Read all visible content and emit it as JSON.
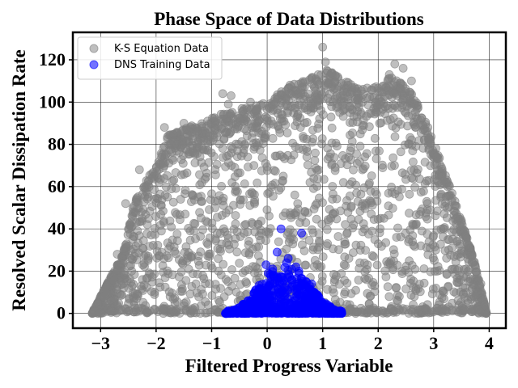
{
  "chart_data": {
    "type": "scatter",
    "title": "Phase Space of Data Distributions",
    "xlabel": "Filtered Progress Variable",
    "ylabel": "Resolved Scalar Dissipation Rate",
    "xlim": [
      -3.5,
      4.3
    ],
    "ylim": [
      -7,
      133
    ],
    "xticks": [
      -3,
      -2,
      -1,
      0,
      1,
      2,
      3,
      4
    ],
    "xtick_labels": [
      "−3",
      "−2",
      "−1",
      "0",
      "1",
      "2",
      "3",
      "4"
    ],
    "yticks": [
      0,
      20,
      40,
      60,
      80,
      100,
      120
    ],
    "ytick_labels": [
      "0",
      "20",
      "40",
      "60",
      "80",
      "100",
      "120"
    ],
    "grid": true,
    "legend_position": "top-left",
    "series": [
      {
        "name": "K-S Equation Data",
        "color": "#808080",
        "alpha": 0.5,
        "envelope": [
          [
            -3.15,
            0
          ],
          [
            -3.0,
            8
          ],
          [
            -2.8,
            18
          ],
          [
            -2.6,
            28
          ],
          [
            -2.4,
            52
          ],
          [
            -2.2,
            62
          ],
          [
            -2.0,
            70
          ],
          [
            -1.8,
            84
          ],
          [
            -1.5,
            88
          ],
          [
            -1.2,
            90
          ],
          [
            -0.9,
            94
          ],
          [
            -0.6,
            96
          ],
          [
            -0.3,
            98
          ],
          [
            0.0,
            100
          ],
          [
            0.4,
            108
          ],
          [
            0.8,
            112
          ],
          [
            1.1,
            116
          ],
          [
            1.4,
            110
          ],
          [
            1.7,
            106
          ],
          [
            2.0,
            108
          ],
          [
            2.2,
            112
          ],
          [
            2.5,
            108
          ],
          [
            2.7,
            100
          ],
          [
            2.9,
            88
          ],
          [
            3.1,
            74
          ],
          [
            3.3,
            60
          ],
          [
            3.5,
            44
          ],
          [
            3.7,
            28
          ],
          [
            3.85,
            12
          ],
          [
            3.95,
            0
          ]
        ],
        "outliers": [
          [
            1.0,
            126
          ],
          [
            1.05,
            119
          ],
          [
            1.1,
            109
          ],
          [
            0.8,
            111
          ],
          [
            2.3,
            118
          ],
          [
            2.2,
            113
          ],
          [
            2.45,
            116
          ],
          [
            2.6,
            110
          ],
          [
            -0.8,
            104
          ],
          [
            -0.65,
            103
          ],
          [
            -0.7,
            99
          ],
          [
            -0.3,
            100
          ],
          [
            -0.2,
            96
          ],
          [
            0.55,
            104
          ],
          [
            0.5,
            97
          ],
          [
            0.4,
            104
          ],
          [
            1.25,
            103
          ],
          [
            1.45,
            108
          ],
          [
            1.95,
            100
          ],
          [
            -1.5,
            90
          ],
          [
            -1.85,
            88
          ],
          [
            -2.3,
            68
          ],
          [
            -2.55,
            52
          ],
          [
            -2.7,
            28
          ],
          [
            -3.05,
            0
          ],
          [
            -3.15,
            0
          ],
          [
            3.7,
            24
          ],
          [
            3.85,
            14
          ],
          [
            3.92,
            4
          ],
          [
            1.5,
            104
          ],
          [
            -0.05,
            92
          ],
          [
            0.6,
            88
          ]
        ]
      },
      {
        "name": "DNS Training Data",
        "color": "#0000ff",
        "alpha": 0.55,
        "envelope": [
          [
            -0.75,
            0
          ],
          [
            -0.5,
            3
          ],
          [
            -0.3,
            7
          ],
          [
            -0.15,
            14
          ],
          [
            0.0,
            19
          ],
          [
            0.15,
            24
          ],
          [
            0.3,
            24
          ],
          [
            0.45,
            22
          ],
          [
            0.6,
            19
          ],
          [
            0.75,
            14
          ],
          [
            0.9,
            9
          ],
          [
            1.05,
            5
          ],
          [
            1.2,
            2
          ],
          [
            1.35,
            0
          ]
        ],
        "outliers": [
          [
            0.25,
            40
          ],
          [
            0.62,
            38
          ],
          [
            0.18,
            29
          ],
          [
            0.38,
            26
          ],
          [
            -0.02,
            23
          ],
          [
            0.1,
            21
          ],
          [
            0.52,
            22
          ],
          [
            0.57,
            20
          ],
          [
            0.35,
            24
          ],
          [
            -0.15,
            11
          ],
          [
            0.8,
            14
          ]
        ]
      }
    ]
  }
}
